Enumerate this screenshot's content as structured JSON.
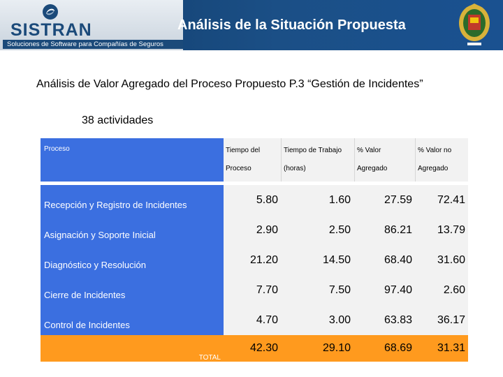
{
  "header": {
    "title": "Análisis de la Situación Propuesta",
    "brand_name": "SISTRAN",
    "brand_tagline": "Soluciones de Software para Compañías de Seguros"
  },
  "subtitle": "Análisis de Valor Agregado del Proceso Propuesto P.3 “Gestión de Incidentes”",
  "activities": "38 actividades",
  "table": {
    "headers": {
      "process": "Proceso",
      "col1_l1": "Tiempo del",
      "col1_l2": "Proceso",
      "col2_l1": "Tiempo de Trabajo",
      "col2_l2": "(horas)",
      "col3_l1": "% Valor",
      "col3_l2": "Agregado",
      "col4_l1": "% Valor no",
      "col4_l2": "Agregado"
    },
    "rows": [
      {
        "name": "Recepción y Registro de Incidentes",
        "v1": "5.80",
        "v2": "1.60",
        "v3": "27.59",
        "v4": "72.41"
      },
      {
        "name": "Asignación y Soporte Inicial",
        "v1": "2.90",
        "v2": "2.50",
        "v3": "86.21",
        "v4": "13.79"
      },
      {
        "name": "Diagnóstico y Resolución",
        "v1": "21.20",
        "v2": "14.50",
        "v3": "68.40",
        "v4": "31.60"
      },
      {
        "name": "Cierre de Incidentes",
        "v1": "7.70",
        "v2": "7.50",
        "v3": "97.40",
        "v4": "2.60"
      },
      {
        "name": "Control de Incidentes",
        "v1": "4.70",
        "v2": "3.00",
        "v3": "63.83",
        "v4": "36.17"
      }
    ],
    "total": {
      "name": "TOTAL",
      "v1": "42.30",
      "v2": "29.10",
      "v3": "68.69",
      "v4": "31.31"
    }
  },
  "colors": {
    "header_bg": "#1b4f86",
    "process_cell": "#3b6fe0",
    "value_cell": "#f2f2f2",
    "total_row": "#ff9a1e"
  }
}
